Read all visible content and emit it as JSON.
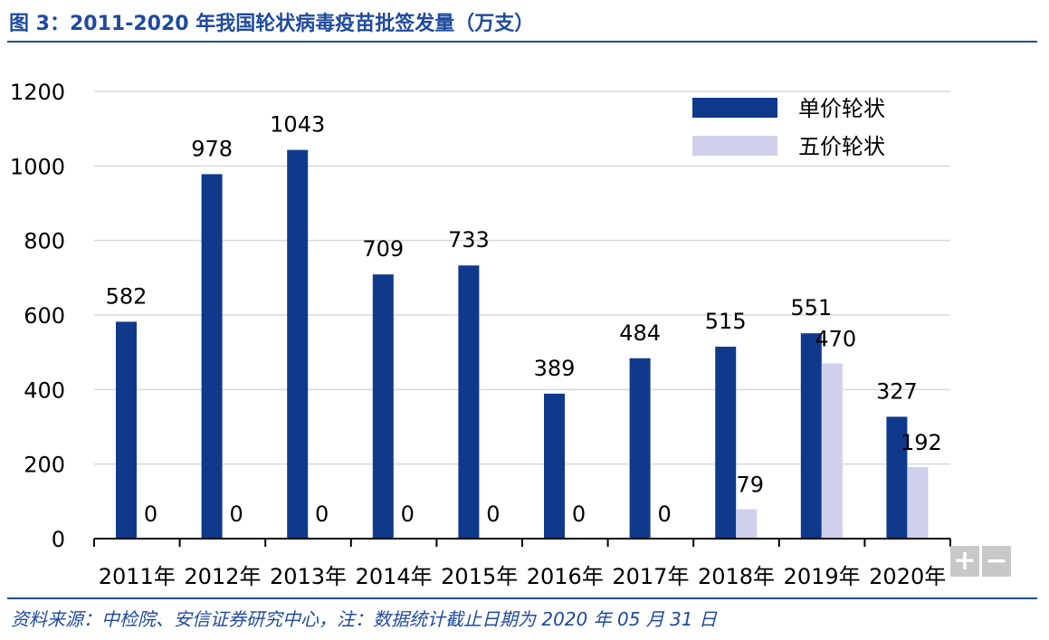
{
  "header": {
    "title": "图 3：2011-2020 年我国轮状病毒疫苗批签发量（万支）"
  },
  "footer": {
    "source": "资料来源：中检院、安信证券研究中心，注：数据统计截止日期为 2020 年 05 月 31 日"
  },
  "controls": {
    "zoom_in": "+",
    "zoom_out": "−"
  },
  "colors": {
    "accent": "#1f4a9e",
    "series1": "#0f3a8c",
    "series2": "#cfd0ec",
    "grid": "#d9d9d9"
  },
  "chart_data": {
    "type": "bar",
    "title": "2011-2020 年我国轮状病毒疫苗批签发量（万支）",
    "xlabel": "",
    "ylabel": "",
    "ylim": [
      0,
      1200
    ],
    "yticks": [
      "0",
      "200",
      "400",
      "600",
      "800",
      "1000",
      "1200"
    ],
    "categories": [
      "2011年",
      "2012年",
      "2013年",
      "2014年",
      "2015年",
      "2016年",
      "2017年",
      "2018年",
      "2019年",
      "2020年"
    ],
    "series": [
      {
        "name": "单价轮状",
        "values": [
          582,
          978,
          1043,
          709,
          733,
          389,
          484,
          515,
          551,
          327
        ]
      },
      {
        "name": "五价轮状",
        "values": [
          0,
          0,
          0,
          0,
          0,
          0,
          0,
          79,
          470,
          192
        ]
      }
    ],
    "legend": "top-right",
    "grid": true
  }
}
